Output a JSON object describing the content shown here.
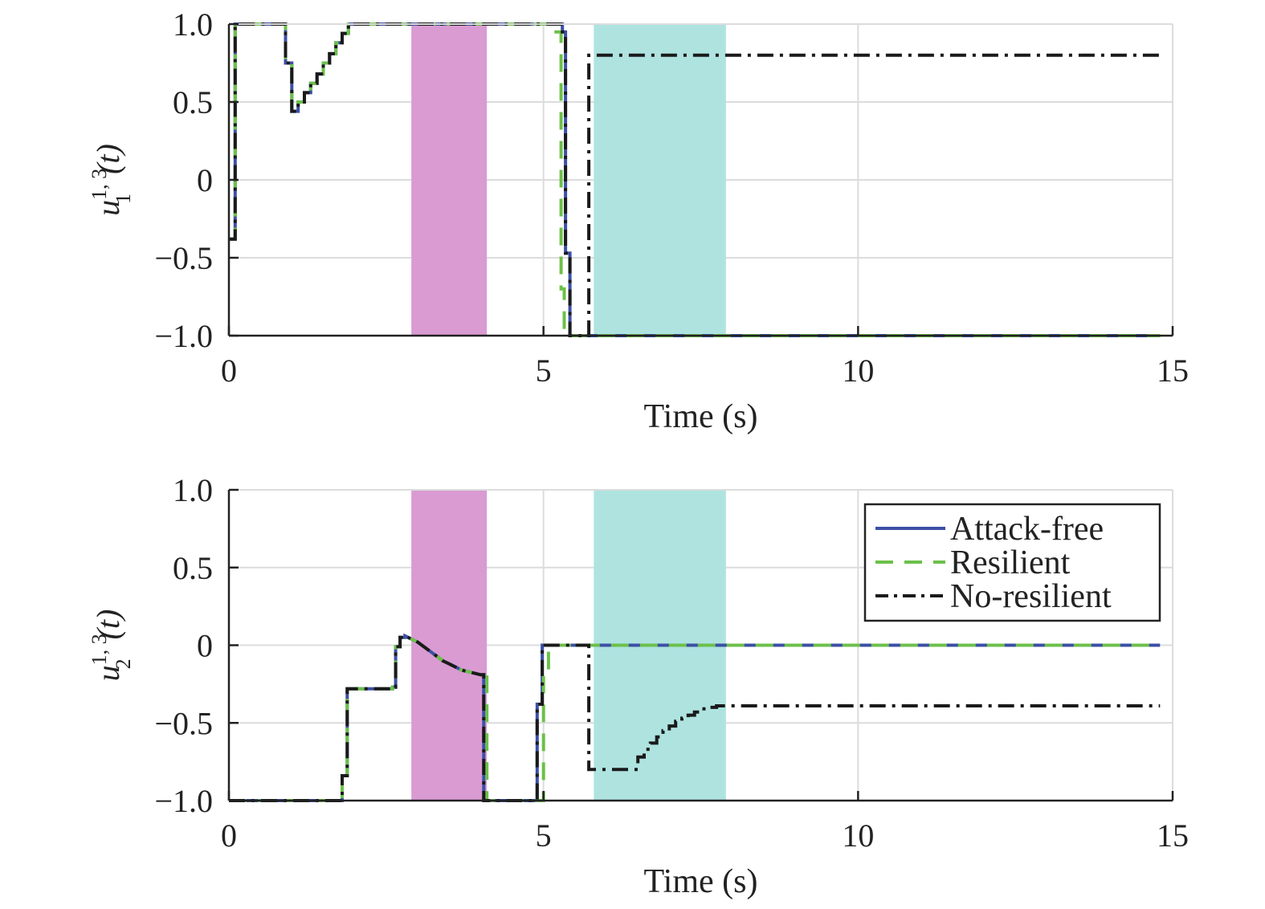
{
  "chart_data": [
    {
      "type": "line",
      "ylabel": {
        "base": "u",
        "sub": "1",
        "sup": "1, 3",
        "arg": "(t)"
      },
      "xlabel": "Time (s)",
      "xlim": [
        0,
        15
      ],
      "ylim": [
        -1,
        1
      ],
      "xticks": [
        0,
        5,
        10,
        15
      ],
      "xtick_labels": [
        "0",
        "5",
        "10",
        "15"
      ],
      "yticks": [
        -1,
        -0.5,
        0,
        0.5,
        1
      ],
      "ytick_labels": [
        "−1.0",
        "−0.5",
        "0",
        "0.5",
        "1.0"
      ],
      "grid": true,
      "shaded_regions": [
        {
          "x": [
            2.9,
            4.1
          ],
          "color": "#d99bd2"
        },
        {
          "x": [
            5.8,
            7.9
          ],
          "color": "#aee3e0"
        }
      ],
      "series": [
        {
          "name": "Attack-free",
          "color": "#3c4fa6",
          "style": "solid",
          "points": [
            [
              0,
              -0.38
            ],
            [
              0.1,
              -0.38
            ],
            [
              0.1,
              1.0
            ],
            [
              0.9,
              1.0
            ],
            [
              0.9,
              0.75
            ],
            [
              1.0,
              0.75
            ],
            [
              1.0,
              0.44
            ],
            [
              1.1,
              0.44
            ],
            [
              1.1,
              0.5
            ],
            [
              1.2,
              0.5
            ],
            [
              1.2,
              0.56
            ],
            [
              1.3,
              0.56
            ],
            [
              1.3,
              0.62
            ],
            [
              1.4,
              0.62
            ],
            [
              1.4,
              0.68
            ],
            [
              1.5,
              0.68
            ],
            [
              1.5,
              0.75
            ],
            [
              1.6,
              0.75
            ],
            [
              1.6,
              0.81
            ],
            [
              1.7,
              0.81
            ],
            [
              1.7,
              0.88
            ],
            [
              1.8,
              0.88
            ],
            [
              1.8,
              0.94
            ],
            [
              1.9,
              0.94
            ],
            [
              1.9,
              1.0
            ],
            [
              5.3,
              1.0
            ],
            [
              5.3,
              0.95
            ],
            [
              5.35,
              0.95
            ],
            [
              5.35,
              -0.47
            ],
            [
              5.42,
              -0.47
            ],
            [
              5.42,
              -1.0
            ],
            [
              14.8,
              -1.0
            ]
          ]
        },
        {
          "name": "Resilient",
          "color": "#6cc04a",
          "style": "dashed",
          "points": [
            [
              0,
              -0.38
            ],
            [
              0.1,
              -0.38
            ],
            [
              0.1,
              1.0
            ],
            [
              0.9,
              1.0
            ],
            [
              0.9,
              0.75
            ],
            [
              1.0,
              0.75
            ],
            [
              1.0,
              0.44
            ],
            [
              1.1,
              0.44
            ],
            [
              1.1,
              0.5
            ],
            [
              1.2,
              0.5
            ],
            [
              1.2,
              0.56
            ],
            [
              1.3,
              0.56
            ],
            [
              1.3,
              0.62
            ],
            [
              1.4,
              0.62
            ],
            [
              1.4,
              0.68
            ],
            [
              1.5,
              0.68
            ],
            [
              1.5,
              0.75
            ],
            [
              1.6,
              0.75
            ],
            [
              1.6,
              0.81
            ],
            [
              1.7,
              0.81
            ],
            [
              1.7,
              0.88
            ],
            [
              1.8,
              0.88
            ],
            [
              1.8,
              0.94
            ],
            [
              1.9,
              0.94
            ],
            [
              1.9,
              1.0
            ],
            [
              5.2,
              1.0
            ],
            [
              5.2,
              0.95
            ],
            [
              5.28,
              0.95
            ],
            [
              5.28,
              -0.7
            ],
            [
              5.33,
              -0.7
            ],
            [
              5.33,
              -1.0
            ],
            [
              14.8,
              -1.0
            ]
          ]
        },
        {
          "name": "No-resilient",
          "color": "#1a1a1a",
          "style": "dashdot",
          "points": [
            [
              0,
              -0.38
            ],
            [
              0.1,
              -0.38
            ],
            [
              0.1,
              1.0
            ],
            [
              0.9,
              1.0
            ],
            [
              0.9,
              0.75
            ],
            [
              1.0,
              0.75
            ],
            [
              1.0,
              0.44
            ],
            [
              1.1,
              0.44
            ],
            [
              1.1,
              0.5
            ],
            [
              1.2,
              0.5
            ],
            [
              1.2,
              0.56
            ],
            [
              1.3,
              0.56
            ],
            [
              1.3,
              0.62
            ],
            [
              1.4,
              0.62
            ],
            [
              1.4,
              0.68
            ],
            [
              1.5,
              0.68
            ],
            [
              1.5,
              0.75
            ],
            [
              1.6,
              0.75
            ],
            [
              1.6,
              0.81
            ],
            [
              1.7,
              0.81
            ],
            [
              1.7,
              0.88
            ],
            [
              1.8,
              0.88
            ],
            [
              1.8,
              0.94
            ],
            [
              1.9,
              0.94
            ],
            [
              1.9,
              1.0
            ],
            [
              5.3,
              1.0
            ],
            [
              5.3,
              0.95
            ],
            [
              5.35,
              0.95
            ],
            [
              5.35,
              -0.47
            ],
            [
              5.42,
              -0.47
            ],
            [
              5.42,
              -1.0
            ],
            [
              5.72,
              -1.0
            ],
            [
              5.72,
              0.8
            ],
            [
              14.8,
              0.8
            ]
          ]
        }
      ]
    },
    {
      "type": "line",
      "ylabel": {
        "base": "u",
        "sub": "2",
        "sup": "1, 3",
        "arg": "(t)"
      },
      "xlabel": "Time (s)",
      "xlim": [
        0,
        15
      ],
      "ylim": [
        -1,
        1
      ],
      "xticks": [
        0,
        5,
        10,
        15
      ],
      "xtick_labels": [
        "0",
        "5",
        "10",
        "15"
      ],
      "yticks": [
        -1,
        -0.5,
        0,
        0.5,
        1
      ],
      "ytick_labels": [
        "−1.0",
        "−0.5",
        "0",
        "0.5",
        "1.0"
      ],
      "grid": true,
      "legend": {
        "position": "top-right",
        "entries": [
          "Attack-free",
          "Resilient",
          "No-resilient"
        ]
      },
      "shaded_regions": [
        {
          "x": [
            2.9,
            4.1
          ],
          "color": "#d99bd2"
        },
        {
          "x": [
            5.8,
            7.9
          ],
          "color": "#aee3e0"
        }
      ],
      "series": [
        {
          "name": "Attack-free",
          "color": "#3c4fa6",
          "style": "solid",
          "points": [
            [
              0,
              -1.0
            ],
            [
              1.8,
              -1.0
            ],
            [
              1.8,
              -0.84
            ],
            [
              1.88,
              -0.84
            ],
            [
              1.88,
              -0.28
            ],
            [
              2.6,
              -0.28
            ],
            [
              2.6,
              -0.27
            ],
            [
              2.65,
              -0.27
            ],
            [
              2.65,
              -0.01
            ],
            [
              2.72,
              -0.01
            ],
            [
              2.72,
              0.05
            ],
            [
              2.8,
              0.05
            ],
            [
              2.8,
              0.06
            ],
            [
              2.9,
              0.04
            ],
            [
              3.0,
              0.02
            ],
            [
              3.1,
              -0.01
            ],
            [
              3.2,
              -0.04
            ],
            [
              3.3,
              -0.07
            ],
            [
              3.4,
              -0.1
            ],
            [
              3.5,
              -0.12
            ],
            [
              3.6,
              -0.14
            ],
            [
              3.7,
              -0.16
            ],
            [
              3.8,
              -0.17
            ],
            [
              3.9,
              -0.18
            ],
            [
              4.0,
              -0.19
            ],
            [
              4.05,
              -0.19
            ],
            [
              4.05,
              -1.0
            ],
            [
              4.9,
              -1.0
            ],
            [
              4.9,
              -0.38
            ],
            [
              4.98,
              -0.38
            ],
            [
              4.98,
              0.0
            ],
            [
              14.8,
              0.0
            ]
          ]
        },
        {
          "name": "Resilient",
          "color": "#6cc04a",
          "style": "dashed",
          "points": [
            [
              0,
              -1.0
            ],
            [
              1.8,
              -1.0
            ],
            [
              1.8,
              -0.84
            ],
            [
              1.88,
              -0.84
            ],
            [
              1.88,
              -0.28
            ],
            [
              2.6,
              -0.28
            ],
            [
              2.6,
              -0.27
            ],
            [
              2.65,
              -0.27
            ],
            [
              2.65,
              -0.01
            ],
            [
              2.72,
              -0.01
            ],
            [
              2.72,
              0.05
            ],
            [
              2.8,
              0.05
            ],
            [
              2.8,
              0.06
            ],
            [
              2.9,
              0.04
            ],
            [
              3.0,
              0.02
            ],
            [
              3.1,
              -0.01
            ],
            [
              3.2,
              -0.04
            ],
            [
              3.3,
              -0.07
            ],
            [
              3.4,
              -0.1
            ],
            [
              3.5,
              -0.12
            ],
            [
              3.6,
              -0.14
            ],
            [
              3.7,
              -0.16
            ],
            [
              3.8,
              -0.17
            ],
            [
              3.9,
              -0.18
            ],
            [
              4.0,
              -0.19
            ],
            [
              4.1,
              -0.19
            ],
            [
              4.1,
              -1.0
            ],
            [
              5.0,
              -1.0
            ],
            [
              5.0,
              -0.2
            ],
            [
              5.08,
              -0.2
            ],
            [
              5.08,
              0.0
            ],
            [
              14.8,
              0.0
            ]
          ]
        },
        {
          "name": "No-resilient",
          "color": "#1a1a1a",
          "style": "dashdot",
          "points": [
            [
              0,
              -1.0
            ],
            [
              1.8,
              -1.0
            ],
            [
              1.8,
              -0.84
            ],
            [
              1.88,
              -0.84
            ],
            [
              1.88,
              -0.28
            ],
            [
              2.6,
              -0.28
            ],
            [
              2.6,
              -0.27
            ],
            [
              2.65,
              -0.27
            ],
            [
              2.65,
              -0.01
            ],
            [
              2.72,
              -0.01
            ],
            [
              2.72,
              0.05
            ],
            [
              2.8,
              0.05
            ],
            [
              2.8,
              0.06
            ],
            [
              2.9,
              0.04
            ],
            [
              3.0,
              0.02
            ],
            [
              3.1,
              -0.01
            ],
            [
              3.2,
              -0.04
            ],
            [
              3.3,
              -0.07
            ],
            [
              3.4,
              -0.1
            ],
            [
              3.5,
              -0.12
            ],
            [
              3.6,
              -0.14
            ],
            [
              3.7,
              -0.16
            ],
            [
              3.8,
              -0.17
            ],
            [
              3.9,
              -0.18
            ],
            [
              4.0,
              -0.19
            ],
            [
              4.05,
              -0.19
            ],
            [
              4.05,
              -1.0
            ],
            [
              4.9,
              -1.0
            ],
            [
              4.9,
              -0.38
            ],
            [
              4.98,
              -0.38
            ],
            [
              4.98,
              0.0
            ],
            [
              5.72,
              0.0
            ],
            [
              5.72,
              -0.8
            ],
            [
              6.5,
              -0.8
            ],
            [
              6.5,
              -0.72
            ],
            [
              6.6,
              -0.72
            ],
            [
              6.6,
              -0.67
            ],
            [
              6.7,
              -0.67
            ],
            [
              6.7,
              -0.63
            ],
            [
              6.8,
              -0.63
            ],
            [
              6.8,
              -0.59
            ],
            [
              6.9,
              -0.59
            ],
            [
              6.9,
              -0.55
            ],
            [
              7.0,
              -0.55
            ],
            [
              7.0,
              -0.52
            ],
            [
              7.1,
              -0.52
            ],
            [
              7.1,
              -0.49
            ],
            [
              7.2,
              -0.49
            ],
            [
              7.2,
              -0.47
            ],
            [
              7.3,
              -0.47
            ],
            [
              7.3,
              -0.45
            ],
            [
              7.4,
              -0.45
            ],
            [
              7.4,
              -0.43
            ],
            [
              7.5,
              -0.43
            ],
            [
              7.5,
              -0.41
            ],
            [
              7.6,
              -0.41
            ],
            [
              7.6,
              -0.4
            ],
            [
              7.75,
              -0.4
            ],
            [
              7.75,
              -0.39
            ],
            [
              14.8,
              -0.39
            ]
          ]
        }
      ]
    }
  ]
}
